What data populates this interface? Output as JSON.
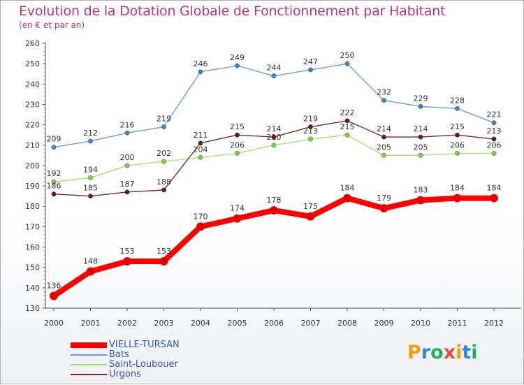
{
  "title": "Evolution de la Dotation Globale de Fonctionnement par Habitant",
  "subtitle": "(en € et par an)",
  "logo_text": "Proxiti",
  "chart_data": {
    "type": "line",
    "x": [
      "2000",
      "2001",
      "2002",
      "2003",
      "2004",
      "2005",
      "2006",
      "2007",
      "2008",
      "2009",
      "2010",
      "2011",
      "2012"
    ],
    "ylim": [
      130,
      260
    ],
    "yticks": [
      130,
      140,
      150,
      160,
      170,
      180,
      190,
      200,
      210,
      220,
      230,
      240,
      250,
      260
    ],
    "grid": false,
    "series": [
      {
        "name": "VIELLE-TURSAN",
        "color": "#ff0000",
        "marker": "#e00000",
        "bold": true,
        "values": [
          136,
          148,
          153,
          153,
          170,
          174,
          178,
          175,
          184,
          179,
          183,
          184,
          184
        ]
      },
      {
        "name": "Bats",
        "color": "#6fa0d6",
        "marker": "#3a86cc",
        "values": [
          209,
          212,
          216,
          219,
          246,
          249,
          244,
          247,
          250,
          232,
          229,
          228,
          221
        ]
      },
      {
        "name": "Saint-Loubouer",
        "color": "#a6e07a",
        "marker": "#7ccf3e",
        "values": [
          192,
          194,
          200,
          202,
          204,
          206,
          210,
          213,
          215,
          205,
          205,
          206,
          206
        ]
      },
      {
        "name": "Urgons",
        "color": "#7a2b2b",
        "marker": "#6a1a1a",
        "values": [
          186,
          185,
          187,
          188,
          211,
          215,
          214,
          219,
          222,
          214,
          214,
          215,
          213
        ]
      }
    ]
  }
}
